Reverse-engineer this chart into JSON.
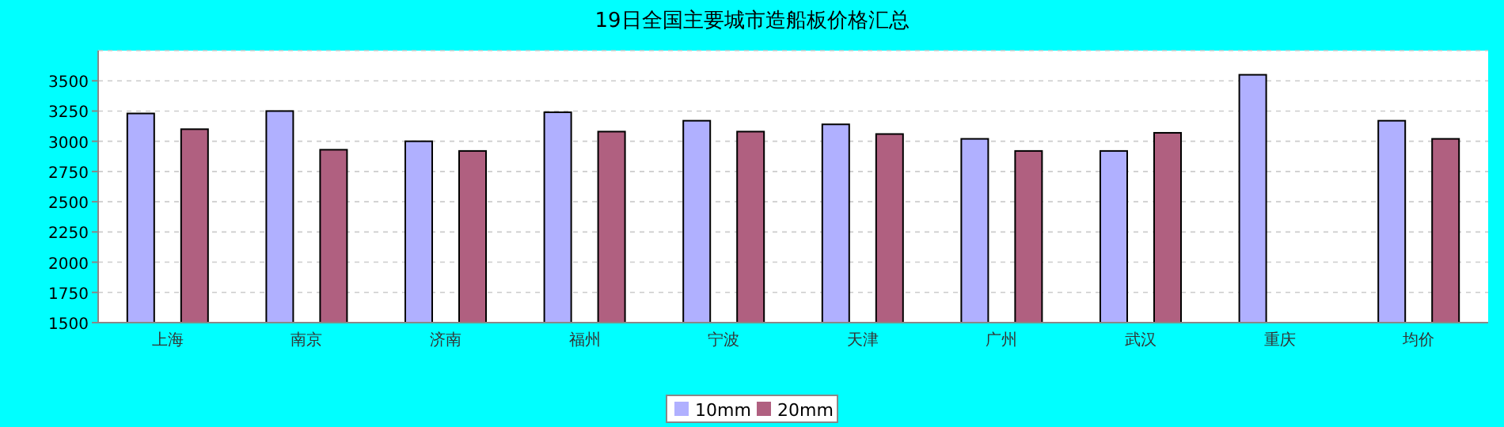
{
  "chart_data": {
    "type": "bar",
    "title": "19日全国主要城市造船板价格汇总",
    "categories": [
      "上海",
      "南京",
      "济南",
      "福州",
      "宁波",
      "天津",
      "广州",
      "武汉",
      "重庆",
      "均价"
    ],
    "series": [
      {
        "name": "10mm",
        "color": "#b0b0ff",
        "values": [
          3230,
          3250,
          3000,
          3240,
          3170,
          3140,
          3020,
          2920,
          3550,
          3170
        ]
      },
      {
        "name": "20mm",
        "color": "#b06080",
        "values": [
          3100,
          2930,
          2920,
          3080,
          3080,
          3060,
          2920,
          3070,
          null,
          3020
        ]
      }
    ],
    "ylim": [
      1500,
      3750
    ],
    "yticks": [
      1500,
      1750,
      2000,
      2250,
      2500,
      2750,
      3000,
      3250,
      3500
    ],
    "grid": "y",
    "legend": "bottom"
  }
}
